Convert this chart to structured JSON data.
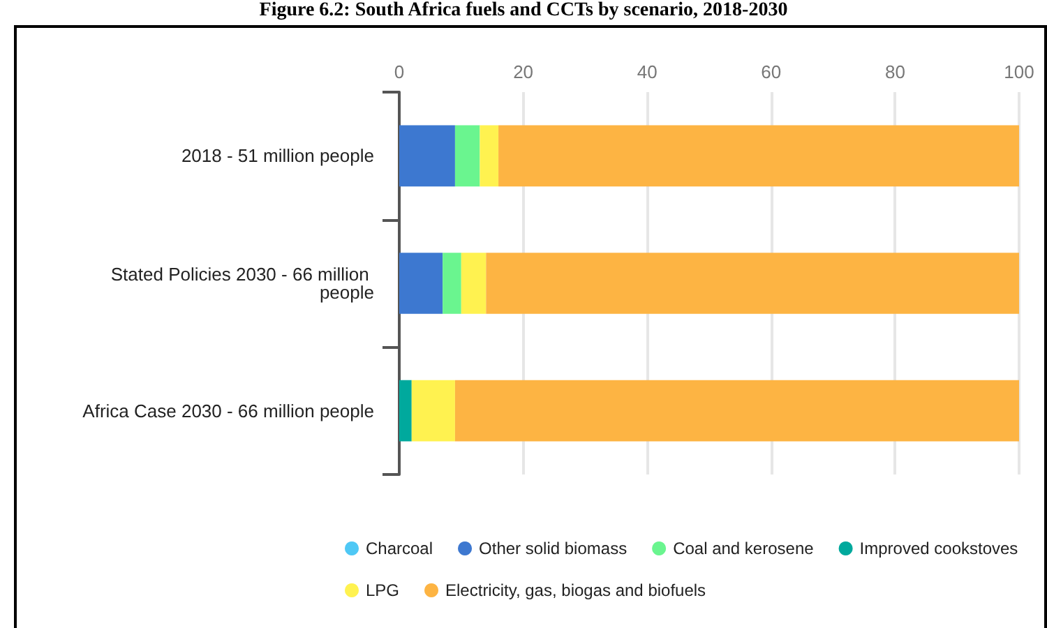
{
  "chart_data": {
    "type": "bar",
    "title": "Figure 6.2: South Africa fuels and CCTs by scenario, 2018-2030",
    "orientation": "horizontal",
    "stacked": true,
    "categories": [
      "2018 - 51 million people",
      "Stated Policies 2030 - 66 million people",
      "Africa Case 2030 - 66 million people"
    ],
    "series": [
      {
        "name": "Charcoal",
        "color": "#4fc8f5",
        "values": [
          0,
          0,
          0
        ]
      },
      {
        "name": "Other solid biomass",
        "color": "#3d78d0",
        "values": [
          9,
          7,
          0
        ]
      },
      {
        "name": "Coal and kerosene",
        "color": "#6af58f",
        "values": [
          4,
          3,
          0
        ]
      },
      {
        "name": "Improved cookstoves",
        "color": "#00a99d",
        "values": [
          0,
          0,
          2
        ]
      },
      {
        "name": "LPG",
        "color": "#fff250",
        "values": [
          3,
          4,
          7
        ]
      },
      {
        "name": "Electricity, gas, biogas and biofuels",
        "color": "#fdb443",
        "values": [
          84,
          86,
          91
        ]
      }
    ],
    "xlim": [
      0,
      100
    ],
    "xticks": [
      0,
      20,
      40,
      60,
      80,
      100
    ],
    "grid": "x",
    "legend": "bottom"
  }
}
